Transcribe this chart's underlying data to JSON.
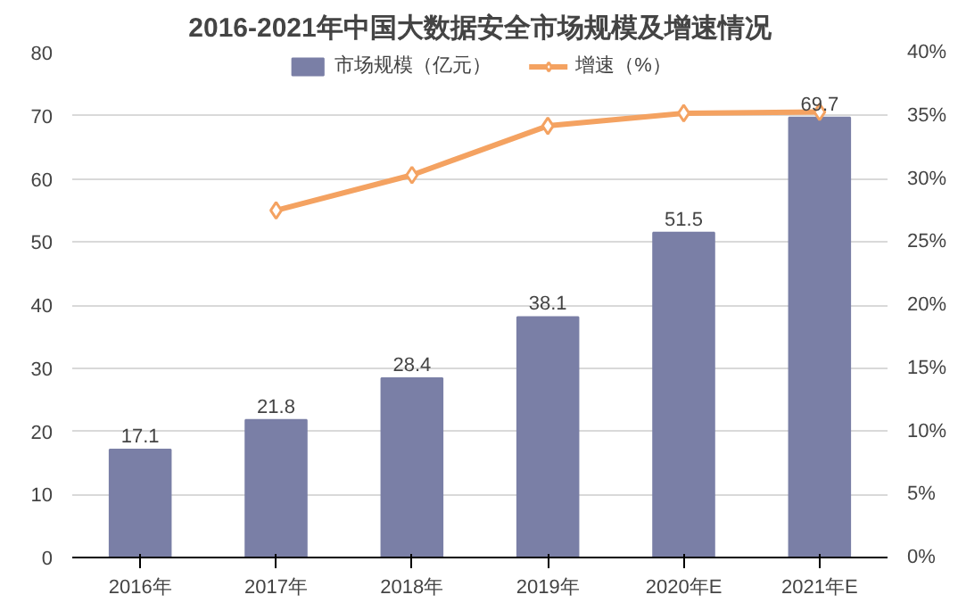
{
  "chart_data": {
    "type": "bar",
    "title": "2016-2021年中国大数据安全市场规模及增速情况",
    "categories": [
      "2016年",
      "2017年",
      "2018年",
      "2019年",
      "2020年E",
      "2021年E"
    ],
    "series": [
      {
        "name": "市场规模（亿元）",
        "color": "#7a7fa6",
        "values": [
          17.1,
          21.8,
          28.4,
          38.1,
          51.5,
          69.7
        ],
        "value_labels": [
          "17.1",
          "21.8",
          "28.4",
          "38.1",
          "51.5",
          "69.7"
        ]
      },
      {
        "name": "增速（%）",
        "type": "line",
        "axis": "y2",
        "color": "#f4a261",
        "marker": "diamond",
        "line_style": "solid",
        "values": [
          null,
          27.5,
          30.3,
          34.2,
          35.2,
          35.3
        ]
      }
    ],
    "ylim": [
      0,
      80
    ],
    "yticks": [
      0,
      10,
      20,
      30,
      40,
      50,
      60,
      70,
      80
    ],
    "y2lim": [
      0,
      40
    ],
    "y2ticks": [
      {
        "value": 0,
        "label": "0%"
      },
      {
        "value": 5,
        "label": "5%"
      },
      {
        "value": 10,
        "label": "10%"
      },
      {
        "value": 15,
        "label": "15%"
      },
      {
        "value": 20,
        "label": "20%"
      },
      {
        "value": 25,
        "label": "25%"
      },
      {
        "value": 30,
        "label": "30%"
      },
      {
        "value": 35,
        "label": "35%"
      },
      {
        "value": 40,
        "label": "40%"
      }
    ],
    "grid": "y",
    "legend": "top"
  }
}
